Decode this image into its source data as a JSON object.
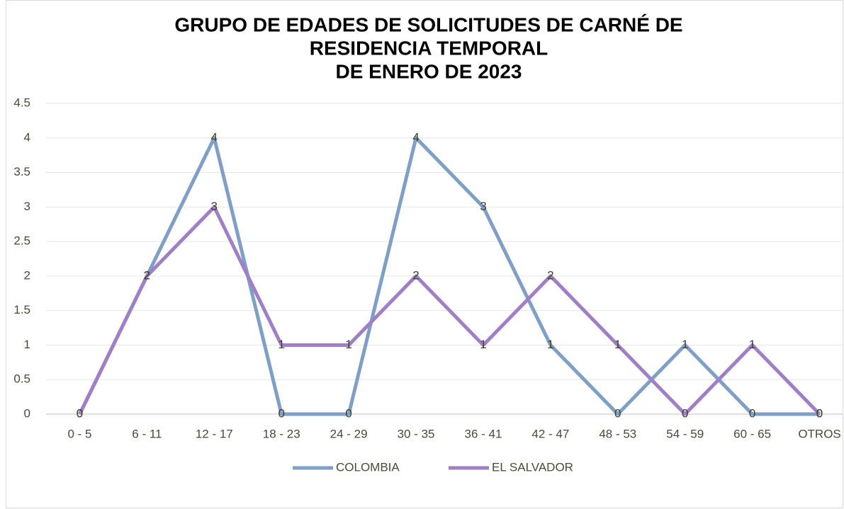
{
  "chart_data": {
    "type": "line",
    "title": [
      "GRUPO DE EDADES DE SOLICITUDES DE CARNÉ DE",
      "RESIDENCIA TEMPORAL",
      "DE ENERO DE 2023"
    ],
    "categories": [
      "0 - 5",
      "6 - 11",
      "12 - 17",
      "18 - 23",
      "24 - 29",
      "30 - 35",
      "36 - 41",
      "42 - 47",
      "48 - 53",
      "54 - 59",
      "60 - 65",
      "OTROS"
    ],
    "series": [
      {
        "name": "COLOMBIA",
        "color": "#7f9fc6",
        "values": [
          0,
          2,
          4,
          0,
          0,
          4,
          3,
          1,
          0,
          1,
          0,
          0
        ]
      },
      {
        "name": "EL SALVADOR",
        "color": "#9f80c6",
        "values": [
          0,
          2,
          3,
          1,
          1,
          2,
          1,
          2,
          1,
          0,
          1,
          0
        ]
      }
    ],
    "ylim": [
      0,
      4.5
    ],
    "yticks": [
      0,
      0.5,
      1,
      1.5,
      2,
      2.5,
      3,
      3.5,
      4,
      4.5
    ],
    "grid": true,
    "legend": "bottom",
    "data_labels": true
  }
}
